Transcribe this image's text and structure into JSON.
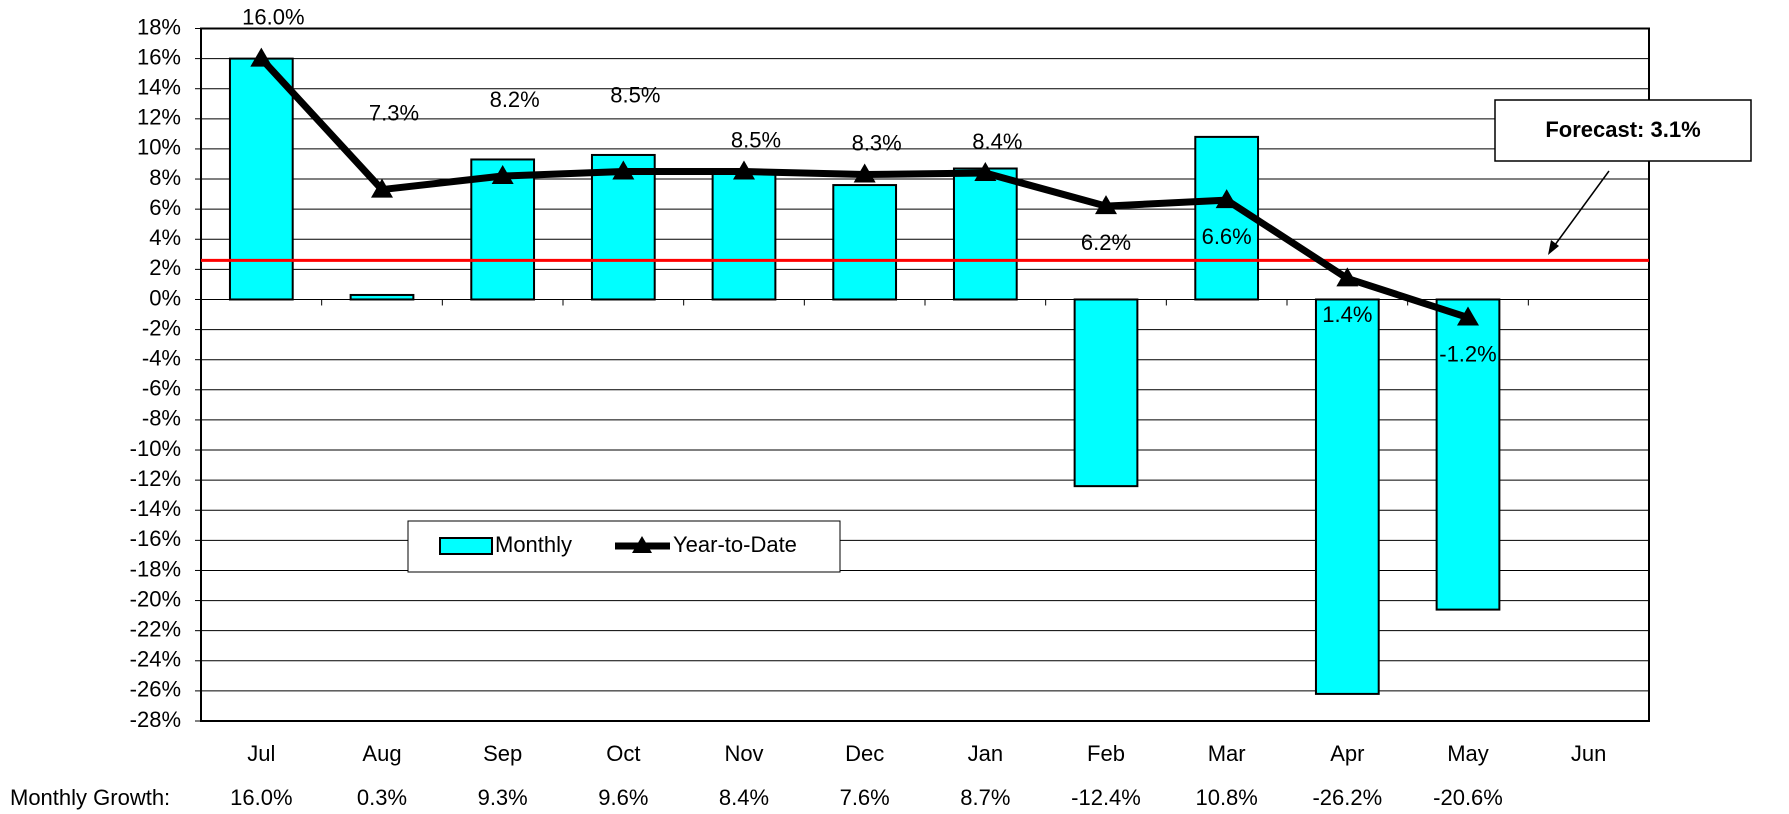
{
  "chart_data": {
    "type": "bar_line",
    "categories": [
      "Jul",
      "Aug",
      "Sep",
      "Oct",
      "Nov",
      "Dec",
      "Jan",
      "Feb",
      "Mar",
      "Apr",
      "May",
      "Jun"
    ],
    "series": [
      {
        "name": "Monthly",
        "type": "bar",
        "color": "#00ffff",
        "values": [
          16.0,
          0.3,
          9.3,
          9.6,
          8.4,
          7.6,
          8.7,
          -12.4,
          10.8,
          -26.2,
          -20.6,
          null
        ],
        "value_labels": [
          "16.0%",
          "0.3%",
          "9.3%",
          "9.6%",
          "8.4%",
          "7.6%",
          "8.7%",
          "-12.4%",
          "10.8%",
          "-26.2%",
          "-20.6%",
          null
        ]
      },
      {
        "name": "Year-to-Date",
        "type": "line",
        "color": "#000000",
        "values": [
          16.0,
          7.3,
          8.2,
          8.5,
          8.5,
          8.3,
          8.4,
          6.2,
          6.6,
          1.4,
          -1.2,
          null
        ],
        "value_labels": [
          "16.0%",
          "7.3%",
          "8.2%",
          "8.5%",
          "8.5%",
          "8.3%",
          "8.4%",
          "6.2%",
          "6.6%",
          "1.4%",
          "-1.2%",
          null
        ]
      }
    ],
    "table_row_label": "Monthly Growth:",
    "reference_line": {
      "value": 2.6,
      "color": "#ff0000"
    },
    "annotation": "Forecast: 3.1%",
    "ylim": [
      -28,
      18
    ],
    "yticks": [
      {
        "value": -28,
        "label": "-28%"
      },
      {
        "value": -26,
        "label": "-26%"
      },
      {
        "value": -24,
        "label": "-24%"
      },
      {
        "value": -22,
        "label": "-22%"
      },
      {
        "value": -20,
        "label": "-20%"
      },
      {
        "value": -18,
        "label": "-18%"
      },
      {
        "value": -16,
        "label": "-16%"
      },
      {
        "value": -14,
        "label": "-14%"
      },
      {
        "value": -12,
        "label": "-12%"
      },
      {
        "value": -10,
        "label": "-10%"
      },
      {
        "value": -8,
        "label": "-8%"
      },
      {
        "value": -6,
        "label": "-6%"
      },
      {
        "value": -4,
        "label": "-4%"
      },
      {
        "value": -2,
        "label": "-2%"
      },
      {
        "value": 0,
        "label": "0%"
      },
      {
        "value": 2,
        "label": "2%"
      },
      {
        "value": 4,
        "label": "4%"
      },
      {
        "value": 6,
        "label": "6%"
      },
      {
        "value": 8,
        "label": "8%"
      },
      {
        "value": 10,
        "label": "10%"
      },
      {
        "value": 12,
        "label": "12%"
      },
      {
        "value": 14,
        "label": "14%"
      },
      {
        "value": 16,
        "label": "16%"
      },
      {
        "value": 18,
        "label": "18%"
      }
    ],
    "grid": true
  }
}
